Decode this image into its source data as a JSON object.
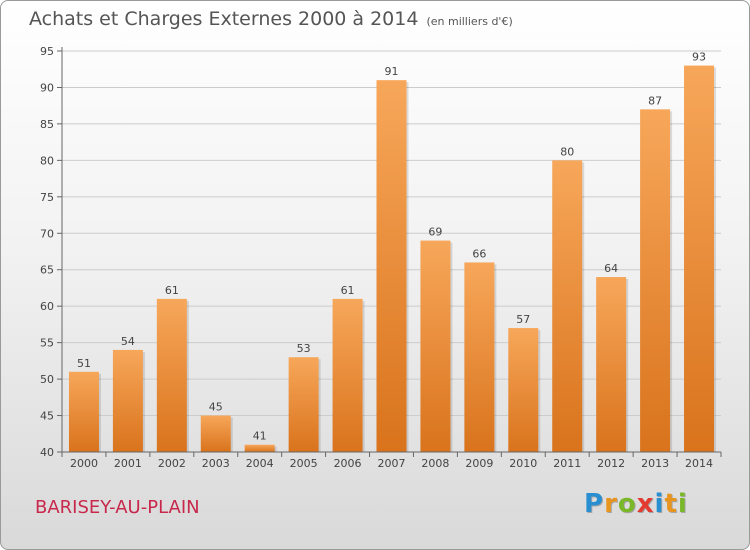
{
  "header": {
    "title": "Achats et Charges Externes 2000 à 2014",
    "unit": "(en milliers d'€)"
  },
  "footer": {
    "commune": "BARISEY-AU-PLAIN",
    "brand_letters": [
      {
        "ch": "P",
        "color": "#2a8fd0"
      },
      {
        "ch": "r",
        "color": "#e89520"
      },
      {
        "ch": "o",
        "color": "#7ab829"
      },
      {
        "ch": "x",
        "color": "#e33b2f"
      },
      {
        "ch": "i",
        "color": "#2a8fd0"
      },
      {
        "ch": "t",
        "color": "#e89520"
      },
      {
        "ch": "i",
        "color": "#7ab829"
      }
    ]
  },
  "colors": {
    "bar_light": "#f7a75a",
    "bar_dark": "#d9731c",
    "grid": "#cccccc",
    "axis": "#666666",
    "label": "#444444"
  },
  "chart_data": {
    "type": "bar",
    "title": "Achats et Charges Externes 2000 à 2014",
    "subtitle": "(en milliers d'€)",
    "categories": [
      "2000",
      "2001",
      "2002",
      "2003",
      "2004",
      "2005",
      "2006",
      "2007",
      "2008",
      "2009",
      "2010",
      "2011",
      "2012",
      "2013",
      "2014"
    ],
    "values": [
      51,
      54,
      61,
      45,
      41,
      53,
      61,
      91,
      69,
      66,
      57,
      80,
      64,
      87,
      93
    ],
    "ylim": [
      40,
      95
    ],
    "yticks": [
      40,
      45,
      50,
      55,
      60,
      65,
      70,
      75,
      80,
      85,
      90,
      95
    ],
    "grid": true,
    "xlabel": "",
    "ylabel": ""
  }
}
